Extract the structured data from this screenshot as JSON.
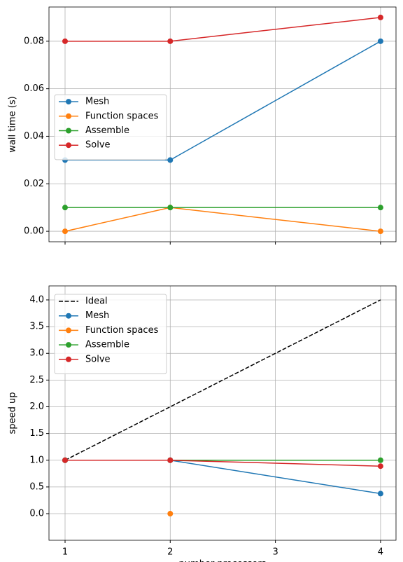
{
  "chart_data": [
    {
      "type": "line",
      "ylabel": "wall time (s)",
      "x": [
        1,
        2,
        4
      ],
      "series": [
        {
          "name": "Mesh",
          "color": "#1f77b4",
          "values": [
            0.03,
            0.03,
            0.08
          ]
        },
        {
          "name": "Function spaces",
          "color": "#ff7f0e",
          "values": [
            0,
            0.01,
            0
          ]
        },
        {
          "name": "Assemble",
          "color": "#2ca02c",
          "values": [
            0.01,
            0.01,
            0.01
          ]
        },
        {
          "name": "Solve",
          "color": "#d62728",
          "values": [
            0.08,
            0.08,
            0.09
          ]
        }
      ],
      "xlim": [
        0.847,
        4.147
      ],
      "xticks": [
        1,
        2,
        3,
        4
      ],
      "show_xtick_labels": false,
      "ylim": [
        -0.0044,
        0.0944
      ],
      "yticks": [
        {
          "value": 0,
          "label": "0.00"
        },
        {
          "value": 0.02,
          "label": "0.02"
        },
        {
          "value": 0.04,
          "label": "0.04"
        },
        {
          "value": 0.06,
          "label": "0.06"
        },
        {
          "value": 0.08,
          "label": "0.08"
        }
      ],
      "grid": true,
      "legend_loc": "center left"
    },
    {
      "type": "line",
      "xlabel": "number processors",
      "ylabel": "speed up",
      "x": [
        1,
        2,
        4
      ],
      "series": [
        {
          "name": "Ideal",
          "color": "#000000",
          "linestyle": "dashed",
          "marker": false,
          "values": [
            1,
            2,
            4
          ]
        },
        {
          "name": "Mesh",
          "color": "#1f77b4",
          "values": [
            1,
            1,
            0.375
          ]
        },
        {
          "name": "Function spaces",
          "color": "#ff7f0e",
          "values": [
            null,
            0,
            null
          ]
        },
        {
          "name": "Assemble",
          "color": "#2ca02c",
          "values": [
            1,
            1,
            1
          ]
        },
        {
          "name": "Solve",
          "color": "#d62728",
          "values": [
            1,
            1,
            0.889
          ]
        }
      ],
      "xlim": [
        0.847,
        4.147
      ],
      "xticks": [
        1,
        2,
        3,
        4
      ],
      "show_xtick_labels": true,
      "ylim": [
        -0.498,
        4.262
      ],
      "yticks": [
        {
          "value": 0,
          "label": "0.0"
        },
        {
          "value": 0.5,
          "label": "0.5"
        },
        {
          "value": 1,
          "label": "1.0"
        },
        {
          "value": 1.5,
          "label": "1.5"
        },
        {
          "value": 2,
          "label": "2.0"
        },
        {
          "value": 2.5,
          "label": "2.5"
        },
        {
          "value": 3,
          "label": "3.0"
        },
        {
          "value": 3.5,
          "label": "3.5"
        },
        {
          "value": 4,
          "label": "4.0"
        }
      ],
      "grid": true,
      "legend_loc": "upper left"
    }
  ]
}
